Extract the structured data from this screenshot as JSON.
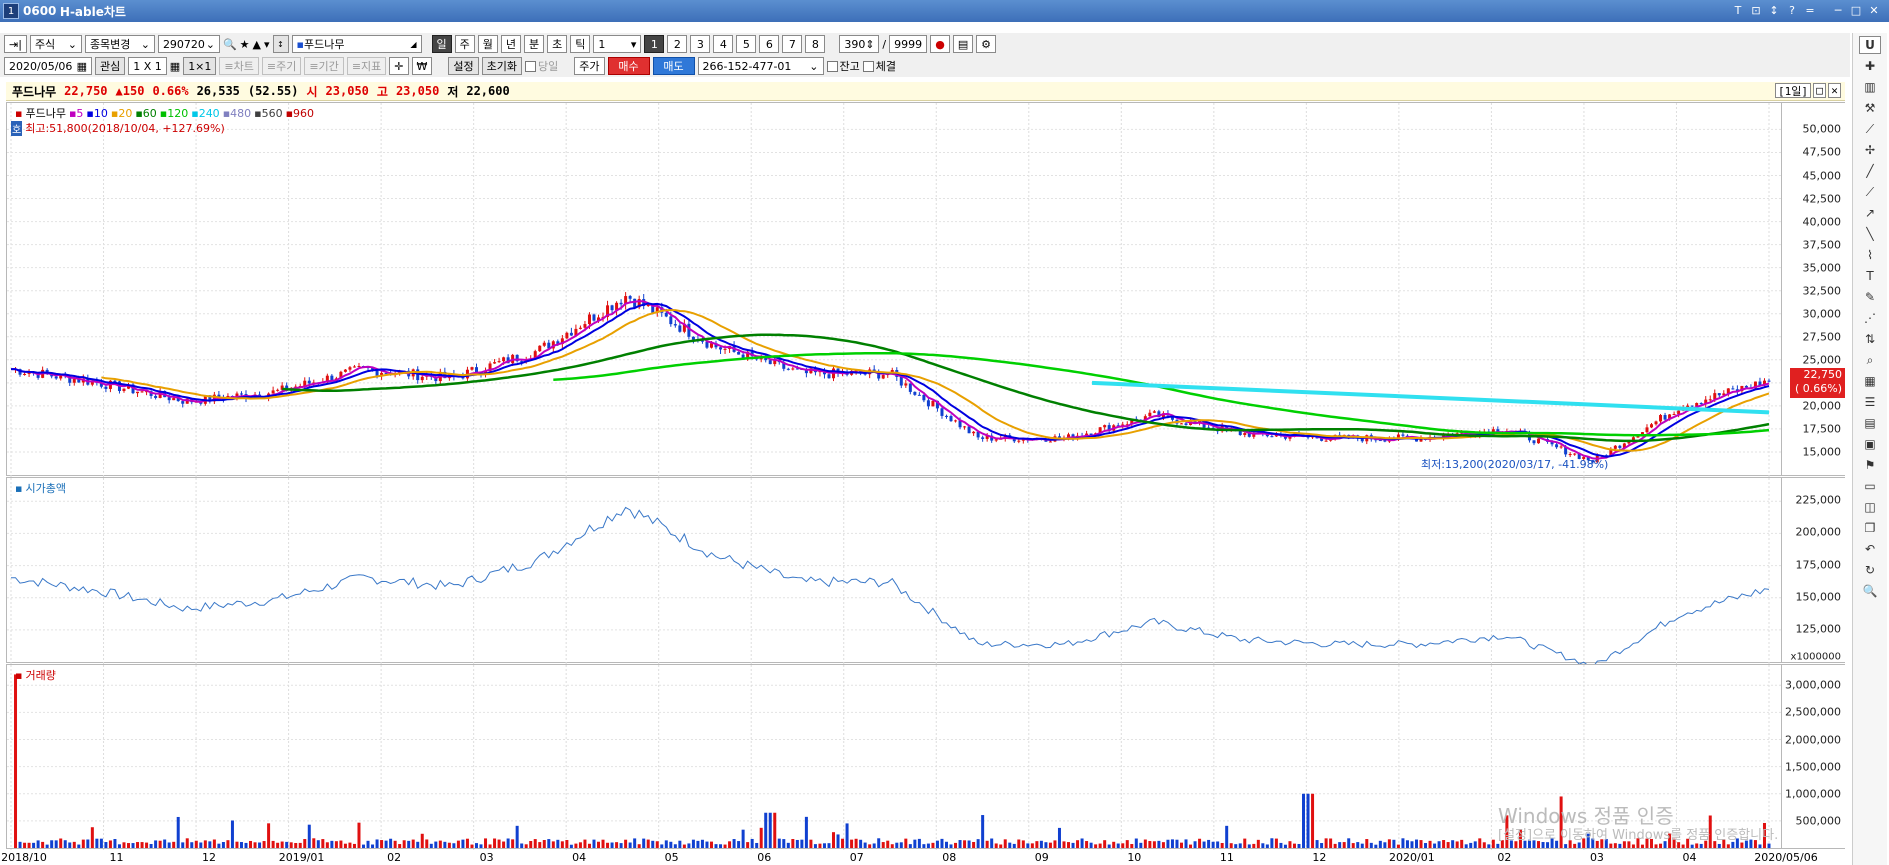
{
  "window": {
    "screen_no": "0600",
    "title": "H-able차트",
    "controls": [
      "T",
      "⊡",
      "↕",
      "?",
      "=",
      "─",
      "□",
      "✕"
    ]
  },
  "toolbar1": {
    "type_select": "주식",
    "change_select": "종목변경",
    "code_input": "290720",
    "stock_name": "푸드나무",
    "period_buttons": [
      "일",
      "주",
      "월",
      "년",
      "분",
      "초",
      "틱"
    ],
    "period_active": "일",
    "tick_value": "1",
    "layout_buttons": [
      "1",
      "2",
      "3",
      "4",
      "5",
      "6",
      "7",
      "8"
    ],
    "count_value": "390",
    "count_max": "9999"
  },
  "toolbar2": {
    "date": "2020/05/06",
    "interest_label": "관심",
    "grid_label": "1 X 1",
    "grid2_label": "1×1",
    "tab_chart": "≡차트",
    "tab_period": "≡주기",
    "tab_range": "≡기간",
    "tab_indicator": "≡지표",
    "setting_label": "설정",
    "reset_label": "초기화",
    "today_label": "당일",
    "price_label": "주가",
    "buy_label": "매수",
    "sell_label": "매도",
    "account": "266-152-477-01",
    "balance_label": "잔고",
    "filled_label": "체결"
  },
  "info": {
    "name": "푸드나무",
    "price": "22,750",
    "change": "▲150",
    "rate": "0.66%",
    "volume": "26,535",
    "volume_ratio": "(52.55)",
    "open_label": "시",
    "open": "23,050",
    "high_label": "고",
    "high": "23,050",
    "low_label": "저",
    "low": "22,600",
    "period": "[1일]"
  },
  "legend": {
    "name": "푸드나무",
    "ma": [
      {
        "label": "5",
        "color": "#c000c0"
      },
      {
        "label": "10",
        "color": "#0000e0"
      },
      {
        "label": "20",
        "color": "#e8a000"
      },
      {
        "label": "60",
        "color": "#008000"
      },
      {
        "label": "120",
        "color": "#00c000"
      },
      {
        "label": "240",
        "color": "#00c8e8"
      },
      {
        "label": "480",
        "color": "#8080c0"
      },
      {
        "label": "560",
        "color": "#404040"
      },
      {
        "label": "960",
        "color": "#c00000"
      }
    ],
    "max_annotation": "최고:51,800(2018/10/04, +127.69%)",
    "min_annotation": "최저:13,200(2020/03/17, -41.98%)",
    "marketcap_title": "시가총액",
    "volume_title": "거래량"
  },
  "price_box": {
    "price": "22,750",
    "rate": "( 0.66%)"
  },
  "y_price": [
    "50,000",
    "47,500",
    "45,000",
    "42,500",
    "40,000",
    "37,500",
    "35,000",
    "32,500",
    "30,000",
    "27,500",
    "25,000",
    "22,500",
    "20,000",
    "17,500",
    "15,000"
  ],
  "y_mcap": [
    "225,000",
    "200,000",
    "175,000",
    "150,000",
    "125,000"
  ],
  "mcap_unit": "x1000000",
  "y_volume": [
    "3,000,000",
    "2,500,000",
    "2,000,000",
    "1,500,000",
    "1,000,000",
    "500,000"
  ],
  "x_axis": [
    "2018/10",
    "11",
    "12",
    "2019/01",
    "02",
    "03",
    "04",
    "05",
    "06",
    "07",
    "08",
    "09",
    "10",
    "11",
    "12",
    "2020/01",
    "02",
    "03",
    "04",
    "2020/05/06"
  ],
  "watermark": [
    "Windows 정품 인증",
    "[설정]으로 이동하여 Windows를 정품 인증합니다."
  ],
  "chart_data": {
    "type": "candlestick",
    "price_series": [
      {
        "date": "2018/10",
        "value": 24000
      },
      {
        "date": "2018/11",
        "value": 22500
      },
      {
        "date": "2018/12",
        "value": 20500
      },
      {
        "date": "2019/01",
        "value": 21500
      },
      {
        "date": "2019/02",
        "value": 24000
      },
      {
        "date": "2019/03",
        "value": 23000
      },
      {
        "date": "2019/04",
        "value": 26000
      },
      {
        "date": "2019/04 late",
        "value": 32000
      },
      {
        "date": "2019/05",
        "value": 26500
      },
      {
        "date": "2019/06",
        "value": 23500
      },
      {
        "date": "2019/07",
        "value": 23500
      },
      {
        "date": "2019/08",
        "value": 16500
      },
      {
        "date": "2019/09",
        "value": 16500
      },
      {
        "date": "2019/10",
        "value": 19000
      },
      {
        "date": "2019/11",
        "value": 17000
      },
      {
        "date": "2019/12",
        "value": 16500
      },
      {
        "date": "2020/01",
        "value": 16500
      },
      {
        "date": "2020/02",
        "value": 17500
      },
      {
        "date": "2020/03",
        "value": 14000
      },
      {
        "date": "2020/04",
        "value": 20000
      },
      {
        "date": "2020/05/06",
        "value": 22750
      }
    ],
    "y_range": [
      13200,
      51800
    ]
  }
}
